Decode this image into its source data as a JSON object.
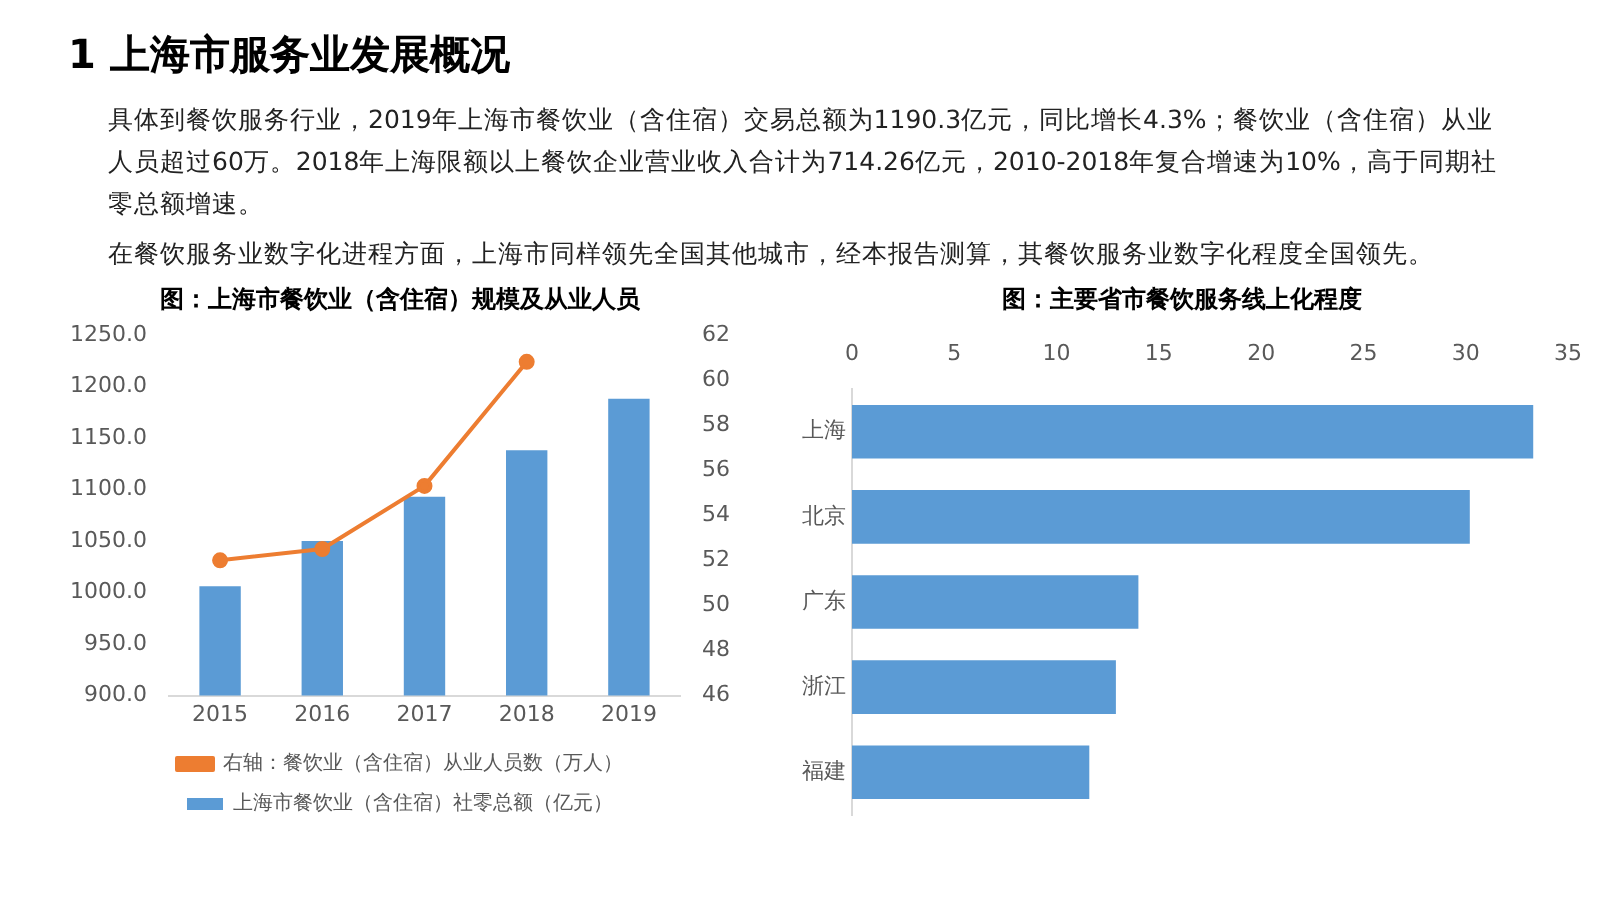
{
  "chart_data": [
    {
      "type": "other",
      "title": "1 上海市服务业发展概况",
      "annotations": [
        "具体到餐饮服务行业，2019年上海市餐饮业（含住宿）交易总额为1190.3亿元，同比增长4.3%；餐饮业（含住宿）从业人员超过60万。2018年上海限额以上餐饮企业营业收入合计为714.26亿元，2010-2018年复合增速为10%，高于同期社零总额增速。",
        "在餐饮服务业数字化进程方面，上海市同样领先全国其他城市，经本报告测算，其餐饮服务业数字化程度全国领先。"
      ]
    },
    {
      "type": "bar",
      "title": "图：上海市餐饮业（含住宿）规模及从业人员",
      "categories": [
        "2015",
        "2016",
        "2017",
        "2018",
        "2019"
      ],
      "series": [
        {
          "name": "上海市餐饮业（含住宿）社零总额（亿元）",
          "color": "#5b9bd5",
          "values": [
            1006,
            1050,
            1093,
            1138,
            1188
          ]
        },
        {
          "name": "右轴：餐饮业（含住宿）从业人员数（万人）",
          "type": "line",
          "axis": "y2",
          "color": "#ed7d31",
          "marker": "circle",
          "values": [
            52.0,
            52.5,
            55.3,
            60.8,
            null
          ]
        }
      ],
      "ylim": [
        900,
        1250
      ],
      "yticks": [
        {
          "value": 900,
          "label": "900.0"
        },
        {
          "value": 950,
          "label": "950.0"
        },
        {
          "value": 1000,
          "label": "1000.0"
        },
        {
          "value": 1050,
          "label": "1050.0"
        },
        {
          "value": 1100,
          "label": "1100.0"
        },
        {
          "value": 1150,
          "label": "1150.0"
        },
        {
          "value": 1200,
          "label": "1200.0"
        },
        {
          "value": 1250,
          "label": "1250.0"
        }
      ],
      "y2lim": [
        46,
        62
      ],
      "y2ticks": [
        46,
        48,
        50,
        52,
        54,
        56,
        58,
        60,
        62
      ],
      "legend": "bottom"
    },
    {
      "type": "bar",
      "orientation": "horizontal",
      "title": "图：主要省市餐饮服务线上化程度",
      "categories": [
        "上海",
        "北京",
        "广东",
        "浙江",
        "福建"
      ],
      "values": [
        33.3,
        30.2,
        14.0,
        12.9,
        11.6
      ],
      "color": "#5b9bd5",
      "xlim": [
        0,
        35
      ],
      "xticks": [
        0,
        5,
        10,
        15,
        20,
        25,
        30,
        35
      ]
    }
  ]
}
